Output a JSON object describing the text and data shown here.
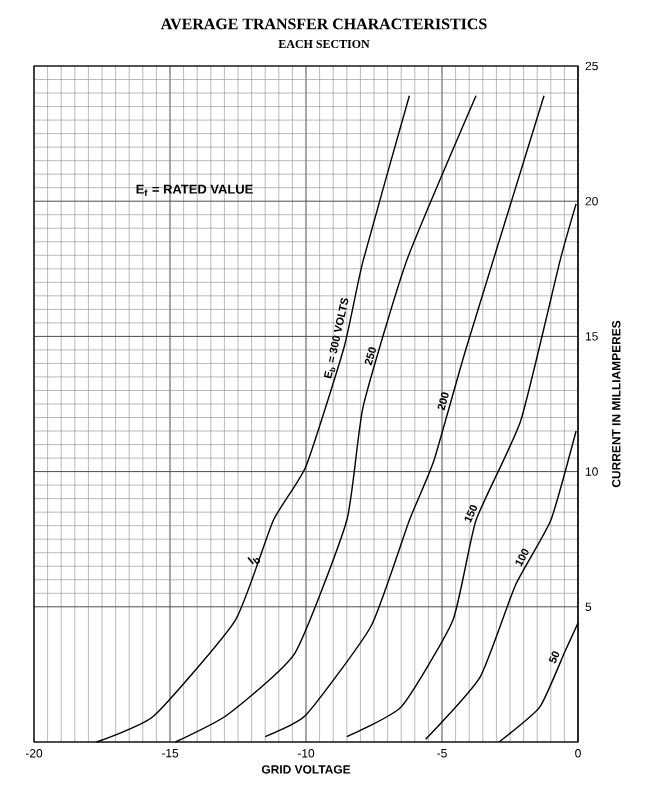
{
  "chart_data": {
    "type": "line",
    "title": "AVERAGE TRANSFER CHARACTERISTICS",
    "subtitle": "EACH SECTION",
    "xlabel": "GRID VOLTAGE",
    "ylabel": "CURRENT IN MILLIAMPERES",
    "xlim": [
      -20,
      0
    ],
    "ylim": [
      0,
      25
    ],
    "xticks": [
      -20,
      -15,
      -10,
      -5,
      0
    ],
    "yticks": [
      5,
      10,
      15,
      20,
      25
    ],
    "grid": true,
    "marker": "none",
    "line_style": "solid",
    "annotations": [
      "E$_{f}$ = RATED VALUE",
      {
        "text": "I$_{b}$",
        "x": -11.6,
        "y": 7
      }
    ],
    "series": [
      {
        "name": "E$_{b}$ = 300 VOLTS",
        "color": "#000000",
        "x": [
          -17.7,
          -15.6,
          -12.6,
          -11.2,
          -10.0,
          -8.6,
          -7.9,
          -6.2
        ],
        "values": [
          0,
          0.96,
          4.5,
          8.2,
          10.2,
          14.6,
          17.8,
          23.9
        ]
      },
      {
        "name": "250",
        "color": "#000000",
        "x": [
          -14.8,
          -12.9,
          -10.4,
          -8.5,
          -7.9,
          -6.3,
          -3.75
        ],
        "values": [
          0,
          1,
          3.3,
          8.2,
          12.4,
          17.8,
          23.9
        ]
      },
      {
        "name": "200",
        "color": "#000000",
        "x": [
          -11.5,
          -10.0,
          -7.6,
          -6.2,
          -5.3,
          -4.1,
          -1.25
        ],
        "values": [
          0.2,
          1,
          4.3,
          8.2,
          10.4,
          14.6,
          23.9
        ]
      },
      {
        "name": "150",
        "color": "#000000",
        "x": [
          -8.5,
          -6.5,
          -4.6,
          -3.75,
          -2.1,
          -0.66,
          -0.07
        ],
        "values": [
          0.2,
          1.3,
          4.5,
          8.2,
          11.9,
          17.8,
          19.9
        ]
      },
      {
        "name": "100",
        "color": "#000000",
        "x": [
          -5.6,
          -3.6,
          -2.3,
          -1.0,
          -0.07
        ],
        "values": [
          0.1,
          2.4,
          5.8,
          8.2,
          11.5
        ]
      },
      {
        "name": "50",
        "color": "#000000",
        "x": [
          -2.9,
          -1.4,
          -0.5,
          0
        ],
        "values": [
          0,
          1.3,
          3.3,
          4.4
        ]
      }
    ]
  }
}
